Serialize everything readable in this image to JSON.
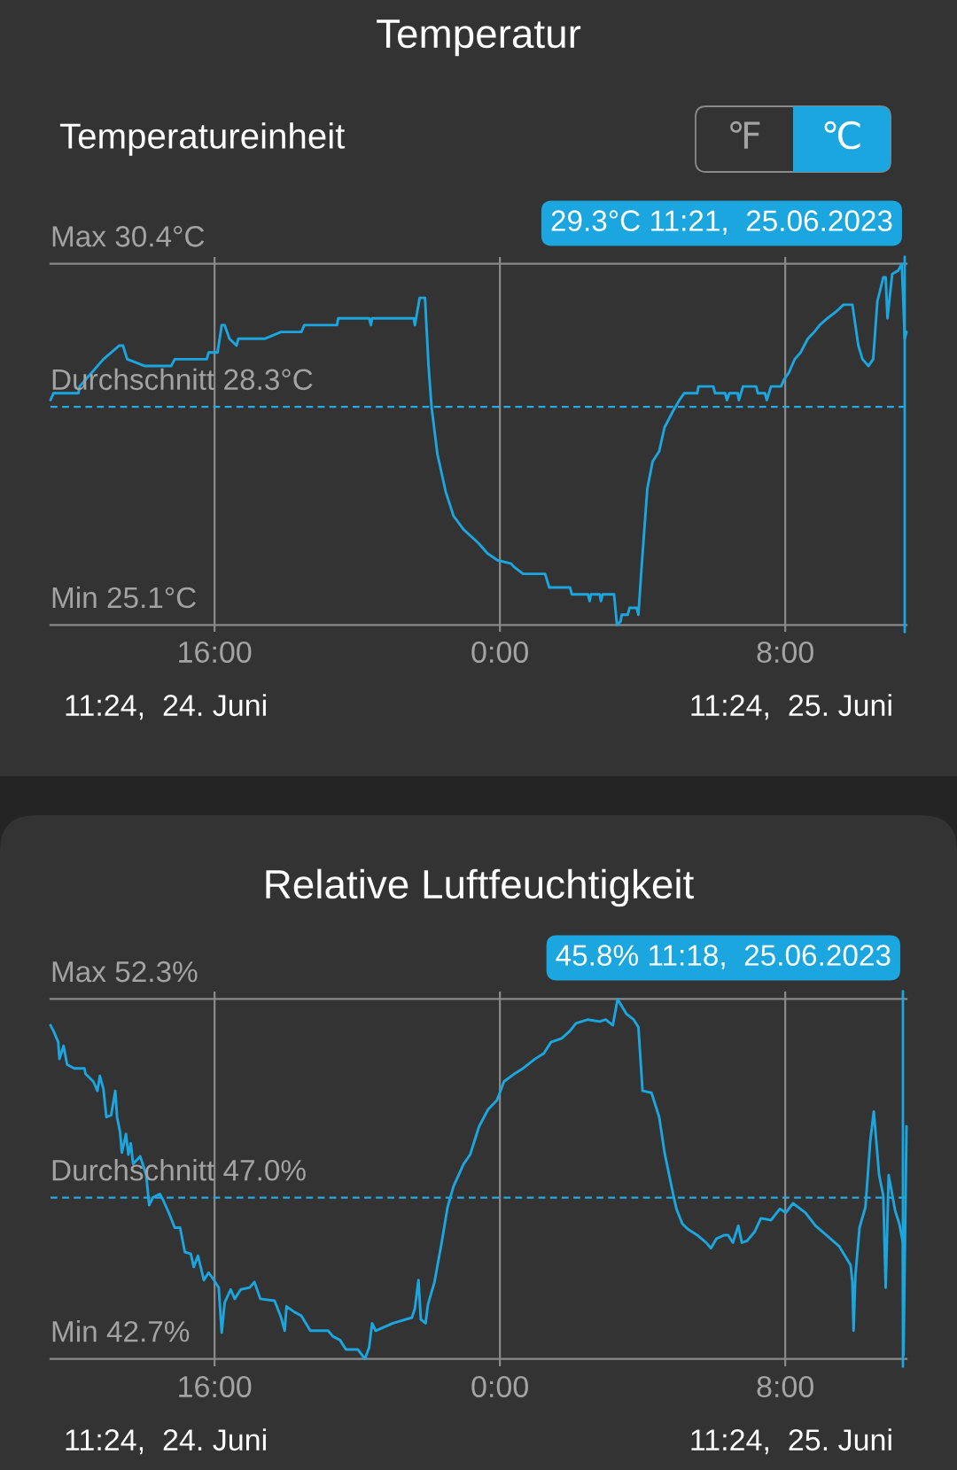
{
  "chart_data": [
    {
      "type": "line",
      "title": "Temperatur",
      "color": "#1ba6df",
      "x": [
        "2023-06-24T11:24",
        "2023-06-24T11:29",
        "2023-06-24T12:11",
        "2023-06-24T12:13",
        "2023-06-24T12:23",
        "2023-06-24T12:53",
        "2023-06-24T13:20",
        "2023-06-24T13:26",
        "2023-06-24T13:33",
        "2023-06-24T14:03",
        "2023-06-24T14:47",
        "2023-06-24T14:53",
        "2023-06-24T15:47",
        "2023-06-24T15:50",
        "2023-06-24T16:05",
        "2023-06-24T16:12",
        "2023-06-24T16:17",
        "2023-06-24T16:25",
        "2023-06-24T16:37",
        "2023-06-24T16:40",
        "2023-06-24T17:24",
        "2023-06-24T17:52",
        "2023-06-24T18:26",
        "2023-06-24T18:31",
        "2023-06-24T18:51",
        "2023-06-24T19:26",
        "2023-06-24T19:28",
        "2023-06-24T20:20",
        "2023-06-24T20:23",
        "2023-06-24T20:25",
        "2023-06-24T21:35",
        "2023-06-24T21:37",
        "2023-06-24T21:45",
        "2023-06-24T21:54",
        "2023-06-24T22:00",
        "2023-06-24T22:05",
        "2023-06-24T22:15",
        "2023-06-24T22:29",
        "2023-06-24T22:42",
        "2023-06-24T22:59",
        "2023-06-24T23:24",
        "2023-06-24T23:39",
        "2023-06-24T23:56",
        "2023-06-25T00:19",
        "2023-06-25T00:24",
        "2023-06-25T00:39",
        "2023-06-25T01:16",
        "2023-06-25T01:23",
        "2023-06-25T01:58",
        "2023-06-25T02:01",
        "2023-06-25T02:28",
        "2023-06-25T02:31",
        "2023-06-25T02:33",
        "2023-06-25T02:48",
        "2023-06-25T02:50",
        "2023-06-25T02:53",
        "2023-06-25T03:12",
        "2023-06-25T03:17",
        "2023-06-25T03:23",
        "2023-06-25T03:25",
        "2023-06-25T03:35",
        "2023-06-25T03:38",
        "2023-06-25T03:50",
        "2023-06-25T03:53",
        "2023-06-25T03:58",
        "2023-06-25T04:08",
        "2023-06-25T04:17",
        "2023-06-25T04:28",
        "2023-06-25T04:37",
        "2023-06-25T04:52",
        "2023-06-25T05:02",
        "2023-06-25T05:10",
        "2023-06-25T05:32",
        "2023-06-25T05:34",
        "2023-06-25T05:59",
        "2023-06-25T06:02",
        "2023-06-25T06:19",
        "2023-06-25T06:22",
        "2023-06-25T06:26",
        "2023-06-25T06:40",
        "2023-06-25T06:42",
        "2023-06-25T06:49",
        "2023-06-25T07:11",
        "2023-06-25T07:14",
        "2023-06-25T07:26",
        "2023-06-25T07:29",
        "2023-06-25T07:36",
        "2023-06-25T07:53",
        "2023-06-25T07:58",
        "2023-06-25T08:06",
        "2023-06-25T08:16",
        "2023-06-25T08:26",
        "2023-06-25T08:38",
        "2023-06-25T08:49",
        "2023-06-25T08:58",
        "2023-06-25T09:11",
        "2023-06-25T09:26",
        "2023-06-25T09:38",
        "2023-06-25T09:53",
        "2023-06-25T10:03",
        "2023-06-25T10:10",
        "2023-06-25T10:20",
        "2023-06-25T10:28",
        "2023-06-25T10:35",
        "2023-06-25T10:45",
        "2023-06-25T10:49",
        "2023-06-25T10:52",
        "2023-06-25T11:00",
        "2023-06-25T11:10",
        "2023-06-25T11:16",
        "2023-06-25T11:18",
        "2023-06-25T11:21",
        "2023-06-25T11:24"
      ],
      "values": [
        28.4,
        28.5,
        28.5,
        28.6,
        28.7,
        29.0,
        29.2,
        29.2,
        29.0,
        28.9,
        28.9,
        29.0,
        29.0,
        29.1,
        29.1,
        29.5,
        29.5,
        29.3,
        29.2,
        29.3,
        29.3,
        29.4,
        29.4,
        29.5,
        29.5,
        29.5,
        29.6,
        29.6,
        29.5,
        29.6,
        29.6,
        29.5,
        29.9,
        29.9,
        28.9,
        28.3,
        27.6,
        27.05,
        26.7,
        26.5,
        26.3,
        26.15,
        26.05,
        26.0,
        25.95,
        25.85,
        25.85,
        25.65,
        25.65,
        25.55,
        25.55,
        25.45,
        25.55,
        25.55,
        25.45,
        25.55,
        25.55,
        25.1,
        25.15,
        25.25,
        25.25,
        25.35,
        25.35,
        25.25,
        25.9,
        27.1,
        27.5,
        27.65,
        28.0,
        28.25,
        28.4,
        28.5,
        28.5,
        28.6,
        28.6,
        28.5,
        28.5,
        28.4,
        28.5,
        28.5,
        28.4,
        28.6,
        28.6,
        28.5,
        28.5,
        28.4,
        28.6,
        28.6,
        28.7,
        28.8,
        29.0,
        29.1,
        29.3,
        29.4,
        29.5,
        29.6,
        29.7,
        29.8,
        29.8,
        29.2,
        29.0,
        28.9,
        29.0,
        29.85,
        30.2,
        30.2,
        29.6,
        30.25,
        30.3,
        30.4,
        30.0,
        29.3,
        29.4
      ],
      "xlim": [
        "2023-06-24T11:24",
        "2023-06-25T11:24"
      ],
      "ylim": [
        25.0,
        30.5
      ],
      "xticks": [
        {
          "value": "2023-06-24T16:00",
          "label": "16:00"
        },
        {
          "value": "2023-06-25T00:00",
          "label": "0:00"
        },
        {
          "value": "2023-06-25T08:00",
          "label": "8:00"
        }
      ],
      "grid": "x",
      "tick_labels": "x",
      "ref_lines": [
        {
          "axis": "y",
          "value": 30.4,
          "label": "Max 30.4°C",
          "color": "#8a8a8a"
        },
        {
          "axis": "y",
          "value": 28.3,
          "label": "Durchschnitt 28.3°C",
          "color": "#29a9e1",
          "line_style": "dashed"
        },
        {
          "axis": "y",
          "value": 25.1,
          "label": "Min 25.1°C",
          "color": "#8a8a8a"
        },
        {
          "axis": "x",
          "value": "2023-06-25T11:21",
          "label": "29.3°C 11:21,  25.06.2023",
          "color": "#1ba6df"
        }
      ],
      "annotations": [
        "11:24,  24. Juni",
        "11:24,  25. Juni",
        "Temperatureinheit",
        "℉",
        "℃"
      ]
    },
    {
      "type": "line",
      "title": "Relative Luftfeuchtigkeit",
      "color": "#1ba6df",
      "x": [
        "2023-06-24T11:24",
        "2023-06-24T11:29",
        "2023-06-24T11:37",
        "2023-06-24T11:39",
        "2023-06-24T11:46",
        "2023-06-24T11:52",
        "2023-06-24T12:04",
        "2023-06-24T12:21",
        "2023-06-24T12:23",
        "2023-06-24T12:36",
        "2023-06-24T12:43",
        "2023-06-24T12:47",
        "2023-06-24T12:53",
        "2023-06-24T12:58",
        "2023-06-24T13:06",
        "2023-06-24T13:13",
        "2023-06-24T13:16",
        "2023-06-24T13:21",
        "2023-06-24T13:24",
        "2023-06-24T13:31",
        "2023-06-24T13:35",
        "2023-06-24T13:39",
        "2023-06-24T13:43",
        "2023-06-24T13:55",
        "2023-06-24T14:05",
        "2023-06-24T14:10",
        "2023-06-24T14:16",
        "2023-06-24T14:28",
        "2023-06-24T14:33",
        "2023-06-24T14:43",
        "2023-06-24T14:53",
        "2023-06-24T15:02",
        "2023-06-24T15:10",
        "2023-06-24T15:20",
        "2023-06-24T15:25",
        "2023-06-24T15:32",
        "2023-06-24T15:42",
        "2023-06-24T15:50",
        "2023-06-24T15:59",
        "2023-06-24T16:07",
        "2023-06-24T16:12",
        "2023-06-24T16:17",
        "2023-06-24T16:27",
        "2023-06-24T16:34",
        "2023-06-24T16:44",
        "2023-06-24T16:59",
        "2023-06-24T17:07",
        "2023-06-24T17:17",
        "2023-06-24T17:41",
        "2023-06-24T17:52",
        "2023-06-24T17:58",
        "2023-06-24T18:01",
        "2023-06-24T18:14",
        "2023-06-24T18:26",
        "2023-06-24T18:41",
        "2023-06-24T19:11",
        "2023-06-24T19:19",
        "2023-06-24T19:31",
        "2023-06-24T19:41",
        "2023-06-24T20:01",
        "2023-06-24T20:13",
        "2023-06-24T20:20",
        "2023-06-24T20:25",
        "2023-06-24T20:31",
        "2023-06-24T21:00",
        "2023-06-24T21:32",
        "2023-06-24T21:37",
        "2023-06-24T21:43",
        "2023-06-24T21:47",
        "2023-06-24T21:55",
        "2023-06-24T21:59",
        "2023-06-24T22:10",
        "2023-06-24T22:22",
        "2023-06-24T22:32",
        "2023-06-24T22:42",
        "2023-06-24T22:59",
        "2023-06-24T23:10",
        "2023-06-24T23:25",
        "2023-06-24T23:40",
        "2023-06-24T23:55",
        "2023-06-25T00:07",
        "2023-06-25T00:24",
        "2023-06-25T00:39",
        "2023-06-25T00:59",
        "2023-06-25T01:14",
        "2023-06-25T01:26",
        "2023-06-25T01:44",
        "2023-06-25T01:58",
        "2023-06-25T02:08",
        "2023-06-25T02:28",
        "2023-06-25T02:48",
        "2023-06-25T02:58",
        "2023-06-25T03:10",
        "2023-06-25T03:18",
        "2023-06-25T03:33",
        "2023-06-25T03:45",
        "2023-06-25T03:53",
        "2023-06-25T04:00",
        "2023-06-25T04:15",
        "2023-06-25T04:28",
        "2023-06-25T04:37",
        "2023-06-25T04:52",
        "2023-06-25T04:57",
        "2023-06-25T05:07",
        "2023-06-25T05:17",
        "2023-06-25T05:32",
        "2023-06-25T05:47",
        "2023-06-25T05:55",
        "2023-06-25T06:04",
        "2023-06-25T06:17",
        "2023-06-25T06:24",
        "2023-06-25T06:32",
        "2023-06-25T06:41",
        "2023-06-25T06:47",
        "2023-06-25T06:56",
        "2023-06-25T07:09",
        "2023-06-25T07:19",
        "2023-06-25T07:36",
        "2023-06-25T07:51",
        "2023-06-25T08:01",
        "2023-06-25T08:13",
        "2023-06-25T08:34",
        "2023-06-25T08:51",
        "2023-06-25T09:13",
        "2023-06-25T09:31",
        "2023-06-25T09:50",
        "2023-06-25T09:53",
        "2023-06-25T09:55",
        "2023-06-25T09:58",
        "2023-06-25T10:05",
        "2023-06-25T10:15",
        "2023-06-25T10:23",
        "2023-06-25T10:29",
        "2023-06-25T10:38",
        "2023-06-25T10:45",
        "2023-06-25T10:49",
        "2023-06-25T10:54",
        "2023-06-25T11:05",
        "2023-06-25T11:12",
        "2023-06-25T11:18",
        "2023-06-25T11:19",
        "2023-06-25T11:24"
      ],
      "values": [
        51.6,
        51.45,
        51.15,
        50.7,
        51.05,
        50.55,
        50.45,
        50.45,
        50.3,
        50.1,
        49.85,
        50.25,
        49.9,
        49.15,
        49.2,
        49.85,
        49.15,
        48.75,
        48.2,
        48.7,
        48.15,
        48.45,
        47.9,
        48.1,
        47.6,
        46.8,
        47.0,
        47.1,
        46.95,
        46.6,
        46.2,
        46.2,
        45.55,
        45.5,
        45.15,
        45.45,
        44.8,
        45.0,
        44.8,
        44.6,
        43.4,
        44.2,
        44.55,
        44.3,
        44.55,
        44.6,
        44.75,
        44.3,
        44.25,
        43.8,
        43.45,
        44.1,
        43.95,
        43.85,
        43.45,
        43.45,
        43.3,
        43.2,
        42.95,
        42.95,
        42.7,
        43.0,
        43.65,
        43.45,
        43.65,
        43.8,
        44.05,
        44.8,
        43.75,
        43.65,
        44.15,
        44.75,
        45.8,
        46.75,
        47.3,
        47.9,
        48.15,
        48.9,
        49.35,
        49.6,
        50.1,
        50.3,
        50.45,
        50.7,
        50.85,
        51.15,
        51.25,
        51.45,
        51.65,
        51.75,
        51.7,
        51.75,
        51.6,
        52.3,
        51.9,
        51.75,
        51.55,
        49.85,
        49.8,
        49.15,
        48.2,
        47.05,
        46.7,
        46.3,
        46.15,
        46.0,
        45.8,
        45.65,
        45.9,
        46.0,
        46.0,
        45.8,
        46.25,
        45.8,
        45.85,
        46.1,
        46.45,
        46.4,
        46.7,
        46.6,
        46.85,
        46.6,
        46.25,
        45.95,
        45.7,
        45.2,
        44.75,
        43.45,
        44.9,
        46.2,
        46.75,
        48.5,
        49.3,
        47.6,
        47.05,
        44.6,
        47.6,
        46.65,
        46.3,
        45.8,
        42.8,
        48.9
      ],
      "xlim": [
        "2023-06-24T11:24",
        "2023-06-25T11:24"
      ],
      "ylim": [
        42.5,
        52.5
      ],
      "xticks": [
        {
          "value": "2023-06-24T16:00",
          "label": "16:00"
        },
        {
          "value": "2023-06-25T00:00",
          "label": "0:00"
        },
        {
          "value": "2023-06-25T08:00",
          "label": "8:00"
        }
      ],
      "grid": "x",
      "tick_labels": "x",
      "ref_lines": [
        {
          "axis": "y",
          "value": 52.3,
          "label": "Max 52.3%",
          "color": "#8a8a8a"
        },
        {
          "axis": "y",
          "value": 47.0,
          "label": "Durchschnitt 47.0%",
          "color": "#29a9e1",
          "line_style": "dashed"
        },
        {
          "axis": "y",
          "value": 42.7,
          "label": "Min 42.7%",
          "color": "#8a8a8a"
        },
        {
          "axis": "x",
          "value": "2023-06-25T11:18",
          "label": "45.8% 11:18,  25.06.2023",
          "color": "#1ba6df"
        }
      ],
      "annotations": [
        "11:24,  24. Juni",
        "11:24,  25. Juni"
      ]
    }
  ]
}
